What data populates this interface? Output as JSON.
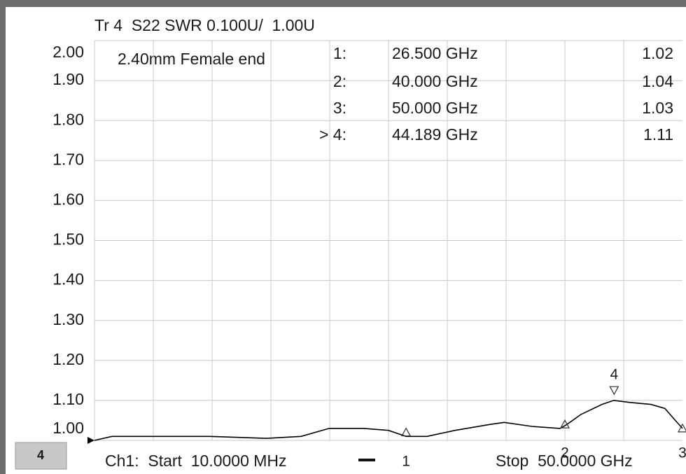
{
  "chart_data": {
    "type": "line",
    "title": "Tr 4  S22 SWR 0.100U/  1.00U",
    "annotation": "2.40mm Female end",
    "channel_badge": "4",
    "start_label": "Ch1:  Start  10.0000 MHz",
    "stop_label": "Stop  50.0000 GHz",
    "color": "#000000",
    "x": [
      0.01,
      1.5,
      5.07,
      9.83,
      14.59,
      17.57,
      19.95,
      22.92,
      25.0,
      26.5,
      28.28,
      30.66,
      33.64,
      34.83,
      37.2,
      39.58,
      40.18,
      41.37,
      43.15,
      44.16,
      45.53,
      47.31,
      48.5,
      49.39,
      50.0
    ],
    "values": [
      1.0,
      1.01,
      1.01,
      1.01,
      1.005,
      1.01,
      1.03,
      1.03,
      1.025,
      1.01,
      1.01,
      1.025,
      1.04,
      1.045,
      1.035,
      1.03,
      1.04,
      1.065,
      1.09,
      1.1,
      1.095,
      1.09,
      1.08,
      1.05,
      1.03
    ],
    "xlim": [
      0.01,
      50
    ],
    "ylim": [
      1.0,
      2.0
    ],
    "yticks": [
      {
        "value": 1.0,
        "label": "1.00"
      },
      {
        "value": 1.1,
        "label": "1.10"
      },
      {
        "value": 1.2,
        "label": "1.20"
      },
      {
        "value": 1.3,
        "label": "1.30"
      },
      {
        "value": 1.4,
        "label": "1.40"
      },
      {
        "value": 1.5,
        "label": "1.50"
      },
      {
        "value": 1.6,
        "label": "1.60"
      },
      {
        "value": 1.7,
        "label": "1.70"
      },
      {
        "value": 1.8,
        "label": "1.80"
      },
      {
        "value": 1.9,
        "label": "1.90"
      },
      {
        "value": 2.0,
        "label": "2.00"
      }
    ],
    "grid": true,
    "markers": {
      "labels": [
        "1:",
        "2:",
        "3:",
        "> 4:"
      ],
      "x": [
        26.5,
        40,
        50,
        44.189
      ],
      "x_labels": [
        "26.500 GHz",
        "40.000 GHz",
        "50.000 GHz",
        "44.189 GHz"
      ],
      "values": [
        1.02,
        1.04,
        1.03,
        1.11
      ],
      "flags": [
        "1",
        "2",
        "3",
        "4"
      ]
    }
  }
}
